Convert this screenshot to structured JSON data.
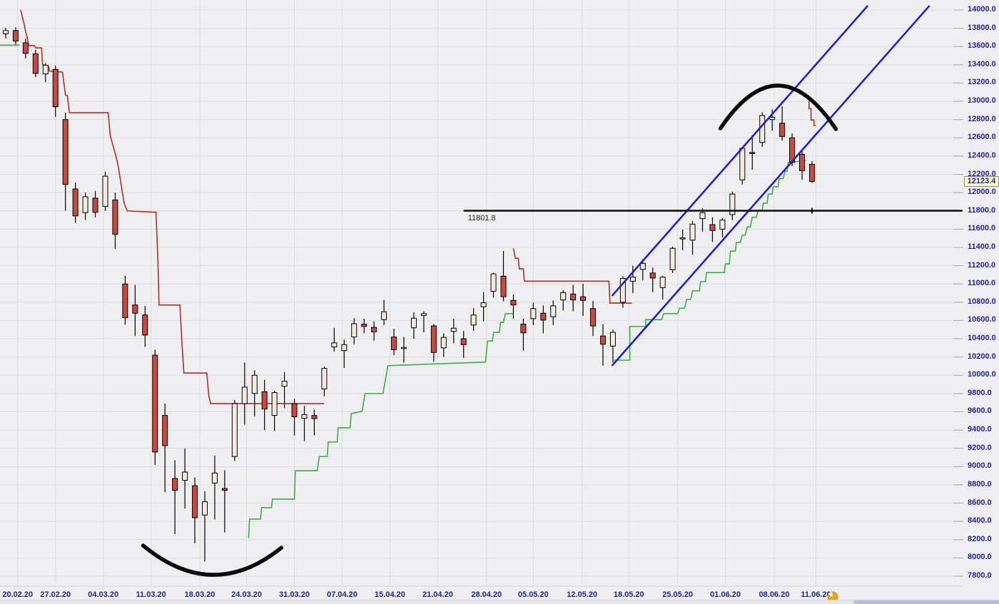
{
  "window": {
    "background": "#efeff1"
  },
  "chart_data": {
    "type": "candlestick",
    "last_price_label": "12123.4",
    "y_axis": {
      "min": 7800,
      "max": 14000,
      "step": 200,
      "decimals": 1,
      "side": "right"
    },
    "x_ticks": [
      [
        "20.02.20",
        1.2
      ],
      [
        "27.02.20",
        5.0
      ],
      [
        "04.03.20",
        9.8
      ],
      [
        "11.03.20",
        14.6
      ],
      [
        "18.03.20",
        19.5
      ],
      [
        "24.03.20",
        24.2
      ],
      [
        "31.03.20",
        29.0
      ],
      [
        "07.04.20",
        33.8
      ],
      [
        "15.04.20",
        38.6
      ],
      [
        "21.04.20",
        43.4
      ],
      [
        "28.04.20",
        48.3
      ],
      [
        "05.05.20",
        53.0
      ],
      [
        "12.05.20",
        57.9
      ],
      [
        "18.05.20",
        62.6
      ],
      [
        "25.05.20",
        67.5
      ],
      [
        "01.06.20",
        72.3
      ],
      [
        "08.06.20",
        77.2
      ],
      [
        "11.06.20",
        81.4
      ]
    ],
    "bars": [
      [
        "20.02.20",
        13740,
        13805,
        13690,
        13775
      ],
      [
        "21.02.20",
        13775,
        13810,
        13620,
        13660
      ],
      [
        "24.02.20",
        13640,
        13685,
        13470,
        13525
      ],
      [
        "25.02.20",
        13520,
        13565,
        13265,
        13305
      ],
      [
        "26.02.20",
        13300,
        13420,
        13210,
        13395
      ],
      [
        "27.02.20",
        13350,
        13390,
        12830,
        12940
      ],
      [
        "28.02.20",
        12800,
        12875,
        11802,
        12090
      ],
      [
        "02.03.20",
        12040,
        12110,
        11670,
        11745
      ],
      [
        "03.03.20",
        11780,
        12000,
        11700,
        11955
      ],
      [
        "04.03.20",
        11940,
        12020,
        11730,
        11785
      ],
      [
        "05.03.20",
        11850,
        12230,
        11800,
        12180
      ],
      [
        "06.03.20",
        11920,
        12000,
        11385,
        11545
      ],
      [
        "09.03.20",
        11000,
        11090,
        10555,
        10630
      ],
      [
        "10.03.20",
        10770,
        10990,
        10430,
        10680
      ],
      [
        "11.03.20",
        10660,
        10760,
        10310,
        10440
      ],
      [
        "12.03.20",
        10220,
        10280,
        9020,
        9160
      ],
      [
        "13.03.20",
        9560,
        9690,
        8720,
        9230
      ],
      [
        "16.03.20",
        8870,
        9070,
        8260,
        8740
      ],
      [
        "17.03.20",
        8850,
        9200,
        8540,
        8940
      ],
      [
        "18.03.20",
        8790,
        8880,
        8160,
        8440
      ],
      [
        "19.03.20",
        8470,
        8730,
        7960,
        8615
      ],
      [
        "20.03.20",
        8820,
        9120,
        8420,
        8930
      ],
      [
        "23.03.20",
        8760,
        8960,
        8280,
        8740
      ],
      [
        "24.03.20",
        9110,
        9730,
        9060,
        9690
      ],
      [
        "25.03.20",
        9690,
        10140,
        9460,
        9870
      ],
      [
        "26.03.20",
        9800,
        10055,
        9550,
        10000
      ],
      [
        "27.03.20",
        9820,
        9950,
        9400,
        9630
      ],
      [
        "30.03.20",
        9560,
        9830,
        9390,
        9810
      ],
      [
        "31.03.20",
        9880,
        10035,
        9640,
        9935
      ],
      [
        "01.04.20",
        9690,
        9740,
        9340,
        9545
      ],
      [
        "02.04.20",
        9530,
        9665,
        9280,
        9570
      ],
      [
        "03.04.20",
        9560,
        9625,
        9340,
        9525
      ],
      [
        "06.04.20",
        9850,
        10095,
        9770,
        10075
      ],
      [
        "07.04.20",
        10310,
        10520,
        10260,
        10355
      ],
      [
        "08.04.20",
        10270,
        10390,
        10080,
        10335
      ],
      [
        "09.04.20",
        10420,
        10625,
        10340,
        10565
      ],
      [
        "10.04.20",
        10560,
        10620,
        10460,
        10535
      ],
      [
        "13.04.20",
        10525,
        10590,
        10380,
        10475
      ],
      [
        "14.04.20",
        10610,
        10825,
        10550,
        10695
      ],
      [
        "15.04.20",
        10420,
        10510,
        10220,
        10280
      ],
      [
        "16.04.20",
        10300,
        10420,
        10140,
        10305
      ],
      [
        "17.04.20",
        10520,
        10690,
        10400,
        10625
      ],
      [
        "20.04.20",
        10655,
        10700,
        10470,
        10675
      ],
      [
        "21.04.20",
        10540,
        10560,
        10150,
        10250
      ],
      [
        "22.04.20",
        10300,
        10460,
        10200,
        10415
      ],
      [
        "23.04.20",
        10480,
        10620,
        10350,
        10515
      ],
      [
        "24.04.20",
        10400,
        10485,
        10190,
        10335
      ],
      [
        "27.04.20",
        10550,
        10735,
        10485,
        10660
      ],
      [
        "28.04.20",
        10750,
        10910,
        10590,
        10795
      ],
      [
        "29.04.20",
        10920,
        11125,
        10850,
        11110
      ],
      [
        "30.04.20",
        11085,
        11360,
        10810,
        10860
      ],
      [
        "01.05.20",
        10820,
        10885,
        10620,
        10770
      ],
      [
        "04.05.20",
        10560,
        10620,
        10270,
        10465
      ],
      [
        "05.05.20",
        10620,
        10795,
        10550,
        10730
      ],
      [
        "06.05.20",
        10680,
        10765,
        10460,
        10605
      ],
      [
        "07.05.20",
        10640,
        10820,
        10550,
        10760
      ],
      [
        "08.05.20",
        10825,
        10930,
        10710,
        10905
      ],
      [
        "11.05.20",
        10890,
        10990,
        10700,
        10825
      ],
      [
        "12.05.20",
        10860,
        11000,
        10650,
        10820
      ],
      [
        "13.05.20",
        10730,
        10815,
        10430,
        10540
      ],
      [
        "14.05.20",
        10430,
        10560,
        10105,
        10340
      ],
      [
        "15.05.20",
        10320,
        10500,
        10140,
        10470
      ],
      [
        "18.05.20",
        10800,
        11085,
        10740,
        11060
      ],
      [
        "19.05.20",
        11030,
        11200,
        10900,
        11075
      ],
      [
        "20.05.20",
        11160,
        11270,
        11040,
        11225
      ],
      [
        "21.05.20",
        11120,
        11180,
        10910,
        11065
      ],
      [
        "22.05.20",
        10960,
        11090,
        10830,
        11075
      ],
      [
        "25.05.20",
        11155,
        11410,
        11120,
        11390
      ],
      [
        "26.05.20",
        11500,
        11595,
        11370,
        11505
      ],
      [
        "27.05.20",
        11480,
        11690,
        11320,
        11655
      ],
      [
        "28.05.20",
        11715,
        11830,
        11570,
        11780
      ],
      [
        "29.05.20",
        11650,
        11730,
        11460,
        11585
      ],
      [
        "01.06.20",
        11600,
        11720,
        11510,
        11700
      ],
      [
        "02.06.20",
        11760,
        12010,
        11700,
        11985
      ],
      [
        "03.06.20",
        12140,
        12500,
        12090,
        12485
      ],
      [
        "04.06.20",
        12440,
        12630,
        12250,
        12430
      ],
      [
        "05.06.20",
        12550,
        12880,
        12500,
        12845
      ],
      [
        "08.06.20",
        12800,
        12910,
        12680,
        12825
      ],
      [
        "09.06.20",
        12760,
        12945,
        12570,
        12615
      ],
      [
        "10.06.20",
        12600,
        12650,
        12290,
        12330
      ],
      [
        "11.06.20",
        12420,
        12470,
        12140,
        12240
      ],
      [
        "12.06.20",
        12310,
        12345,
        12105,
        12123.4
      ]
    ],
    "trail_lines": {
      "green_segments": [
        [
          [
            -0.6,
            13615
          ],
          [
            1.4,
            13615
          ]
        ],
        [
          [
            24.4,
            8215
          ],
          [
            24.5,
            8425
          ],
          [
            25.6,
            8425
          ],
          [
            25.7,
            8550
          ],
          [
            26.7,
            8550
          ],
          [
            26.8,
            8645
          ],
          [
            29.0,
            8645
          ],
          [
            29.1,
            8955
          ],
          [
            31.3,
            8955
          ],
          [
            31.5,
            9110
          ],
          [
            32.3,
            9110
          ],
          [
            32.4,
            9270
          ],
          [
            33.3,
            9270
          ],
          [
            33.4,
            9425
          ],
          [
            34.6,
            9425
          ],
          [
            34.7,
            9580
          ],
          [
            35.8,
            9605
          ],
          [
            36.1,
            9800
          ],
          [
            37.9,
            9800
          ],
          [
            38.4,
            10105
          ],
          [
            48.2,
            10145
          ],
          [
            48.4,
            10375
          ],
          [
            48.9,
            10375
          ],
          [
            49.0,
            10470
          ],
          [
            49.6,
            10470
          ],
          [
            49.7,
            10580
          ],
          [
            50.0,
            10580
          ],
          [
            50.2,
            10675
          ],
          [
            51.0,
            10675
          ]
        ],
        [
          [
            61.1,
            10165
          ],
          [
            62.7,
            10165
          ],
          [
            62.7,
            10535
          ],
          [
            64.3,
            10535
          ],
          [
            64.3,
            10610
          ],
          [
            65.9,
            10610
          ],
          [
            66.1,
            10675
          ],
          [
            67.5,
            10675
          ],
          [
            67.7,
            10735
          ],
          [
            68.2,
            10735
          ],
          [
            68.4,
            10830
          ],
          [
            68.8,
            10830
          ],
          [
            69.0,
            10925
          ],
          [
            69.7,
            10925
          ],
          [
            69.8,
            11025
          ],
          [
            70.3,
            11025
          ],
          [
            70.4,
            11125
          ],
          [
            72.2,
            11125
          ],
          [
            72.3,
            11220
          ],
          [
            72.7,
            11220
          ],
          [
            72.8,
            11360
          ],
          [
            73.3,
            11360
          ],
          [
            73.4,
            11455
          ],
          [
            73.8,
            11455
          ],
          [
            74.0,
            11535
          ],
          [
            74.3,
            11535
          ],
          [
            74.5,
            11625
          ],
          [
            74.8,
            11625
          ],
          [
            75.0,
            11730
          ],
          [
            75.4,
            11730
          ],
          [
            75.6,
            11805
          ],
          [
            76.0,
            11805
          ],
          [
            76.1,
            11885
          ],
          [
            76.5,
            11885
          ],
          [
            76.6,
            11985
          ],
          [
            77.0,
            11985
          ],
          [
            77.1,
            12065
          ],
          [
            77.6,
            12065
          ],
          [
            77.7,
            12155
          ],
          [
            78.1,
            12155
          ],
          [
            78.3,
            12235
          ],
          [
            78.5,
            12235
          ],
          [
            78.6,
            12330
          ],
          [
            80.4,
            12350
          ]
        ]
      ],
      "red_segments": [
        [
          [
            1.5,
            14000
          ],
          [
            1.8,
            13870
          ],
          [
            2.0,
            13765
          ],
          [
            2.2,
            13680
          ],
          [
            2.3,
            13610
          ],
          [
            2.9,
            13610
          ],
          [
            3.0,
            13585
          ],
          [
            3.6,
            13585
          ],
          [
            3.7,
            13405
          ],
          [
            4.3,
            13380
          ],
          [
            4.4,
            13330
          ],
          [
            5.7,
            13320
          ],
          [
            5.9,
            13155
          ],
          [
            6.0,
            13070
          ],
          [
            6.2,
            13060
          ],
          [
            6.4,
            12875
          ],
          [
            10.3,
            12875
          ],
          [
            10.5,
            12625
          ],
          [
            11.1,
            12390
          ],
          [
            11.3,
            12290
          ],
          [
            11.5,
            12155
          ],
          [
            11.7,
            12015
          ],
          [
            11.9,
            11885
          ],
          [
            12.2,
            11800
          ],
          [
            15.1,
            11785
          ],
          [
            15.3,
            11220
          ],
          [
            15.4,
            10770
          ],
          [
            17.5,
            10770
          ],
          [
            17.7,
            10360
          ],
          [
            17.9,
            10025
          ],
          [
            20.2,
            10025
          ],
          [
            20.4,
            9775
          ],
          [
            20.6,
            9690
          ],
          [
            32.0,
            9690
          ]
        ],
        [
          [
            51.0,
            11390
          ],
          [
            51.2,
            11280
          ],
          [
            51.5,
            11280
          ],
          [
            51.6,
            11165
          ],
          [
            52.0,
            11165
          ],
          [
            52.1,
            11030
          ],
          [
            60.6,
            11030
          ],
          [
            60.7,
            10790
          ],
          [
            62.9,
            10790
          ]
        ],
        [
          [
            80.5,
            13030
          ],
          [
            80.7,
            13030
          ],
          [
            80.7,
            12920
          ],
          [
            80.9,
            12920
          ],
          [
            80.9,
            12795
          ],
          [
            81.2,
            12795
          ],
          [
            81.2,
            12735
          ],
          [
            81.4,
            12735
          ]
        ]
      ]
    },
    "channel_lines": [
      {
        "from": [
          60.9,
          10869
        ],
        "to": [
          86.6,
          14047
        ]
      },
      {
        "from": [
          60.9,
          10104
        ],
        "to": [
          92.8,
          14047
        ]
      }
    ],
    "hline": {
      "price": 11801.8,
      "label": "11801.8",
      "from_i": 46.0,
      "to_i": 96.1,
      "tick_i": 81.0
    },
    "arcs": [
      {
        "ends": [
          [
            71.8,
            12704
          ],
          [
            83.4,
            12696
          ]
        ],
        "apex": [
          77.6,
          13172
        ]
      },
      {
        "ends": [
          [
            13.8,
            8136
          ],
          [
            27.7,
            8112
          ]
        ],
        "apex": [
          20.8,
          7815
        ]
      }
    ],
    "colors": {
      "background": "#efeff1",
      "grid": "#dcdcdf",
      "axis_text": "#22229a",
      "candle_up": "#f0ebdd",
      "candle_down": "#c8493f",
      "candle_border": "#000000",
      "trail_red": "#a93226",
      "trail_green": "#3fae46",
      "channel_blue": "#2121cc",
      "annotation_black": "#0a0a0a",
      "price_tag_bg": "#ffffc8"
    },
    "session_icon": "pie-clock"
  }
}
